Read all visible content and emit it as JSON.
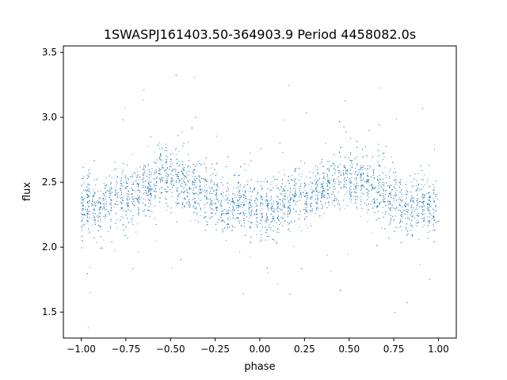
{
  "chart_data": {
    "type": "scatter",
    "title": "1SWASPJ161403.50-364903.9 Period 4458082.0s",
    "xlabel": "phase",
    "ylabel": "flux",
    "xlim": [
      -1.1,
      1.1
    ],
    "ylim": [
      1.3,
      3.55
    ],
    "x_ticks": [
      -1.0,
      -0.75,
      -0.5,
      -0.25,
      0.0,
      0.25,
      0.5,
      0.75,
      1.0
    ],
    "x_tick_labels": [
      "−1.00",
      "−0.75",
      "−0.50",
      "−0.25",
      "0.00",
      "0.25",
      "0.50",
      "0.75",
      "1.00"
    ],
    "y_ticks": [
      1.5,
      2.0,
      2.5,
      3.0,
      3.5
    ],
    "y_tick_labels": [
      "1.5",
      "2.0",
      "2.5",
      "3.0",
      "3.5"
    ],
    "grid": false,
    "legend": "none",
    "marker_color": "#1f77b4",
    "series": [
      {
        "x": [
          -1.0,
          -0.95,
          -0.9,
          -0.85,
          -0.8,
          -0.75,
          -0.7,
          -0.65,
          -0.6,
          -0.55,
          -0.5,
          -0.45,
          -0.4,
          -0.35,
          -0.3,
          -0.25,
          -0.2,
          -0.15,
          -0.1,
          -0.05,
          0.0,
          0.05,
          0.1,
          0.15,
          0.2,
          0.25,
          0.3,
          0.35,
          0.4,
          0.45,
          0.5,
          0.55,
          0.6,
          0.65,
          0.7,
          0.75,
          0.8,
          0.85,
          0.9,
          0.95,
          1.0
        ],
        "y": [
          2.3,
          2.35,
          2.25,
          2.35,
          2.4,
          2.35,
          2.4,
          2.45,
          2.5,
          2.55,
          2.55,
          2.5,
          2.5,
          2.45,
          2.4,
          2.4,
          2.3,
          2.3,
          2.35,
          2.3,
          2.3,
          2.3,
          2.3,
          2.35,
          2.4,
          2.35,
          2.4,
          2.45,
          2.5,
          2.55,
          2.55,
          2.5,
          2.5,
          2.45,
          2.4,
          2.4,
          2.3,
          2.3,
          2.35,
          2.3,
          2.3
        ]
      }
    ]
  }
}
